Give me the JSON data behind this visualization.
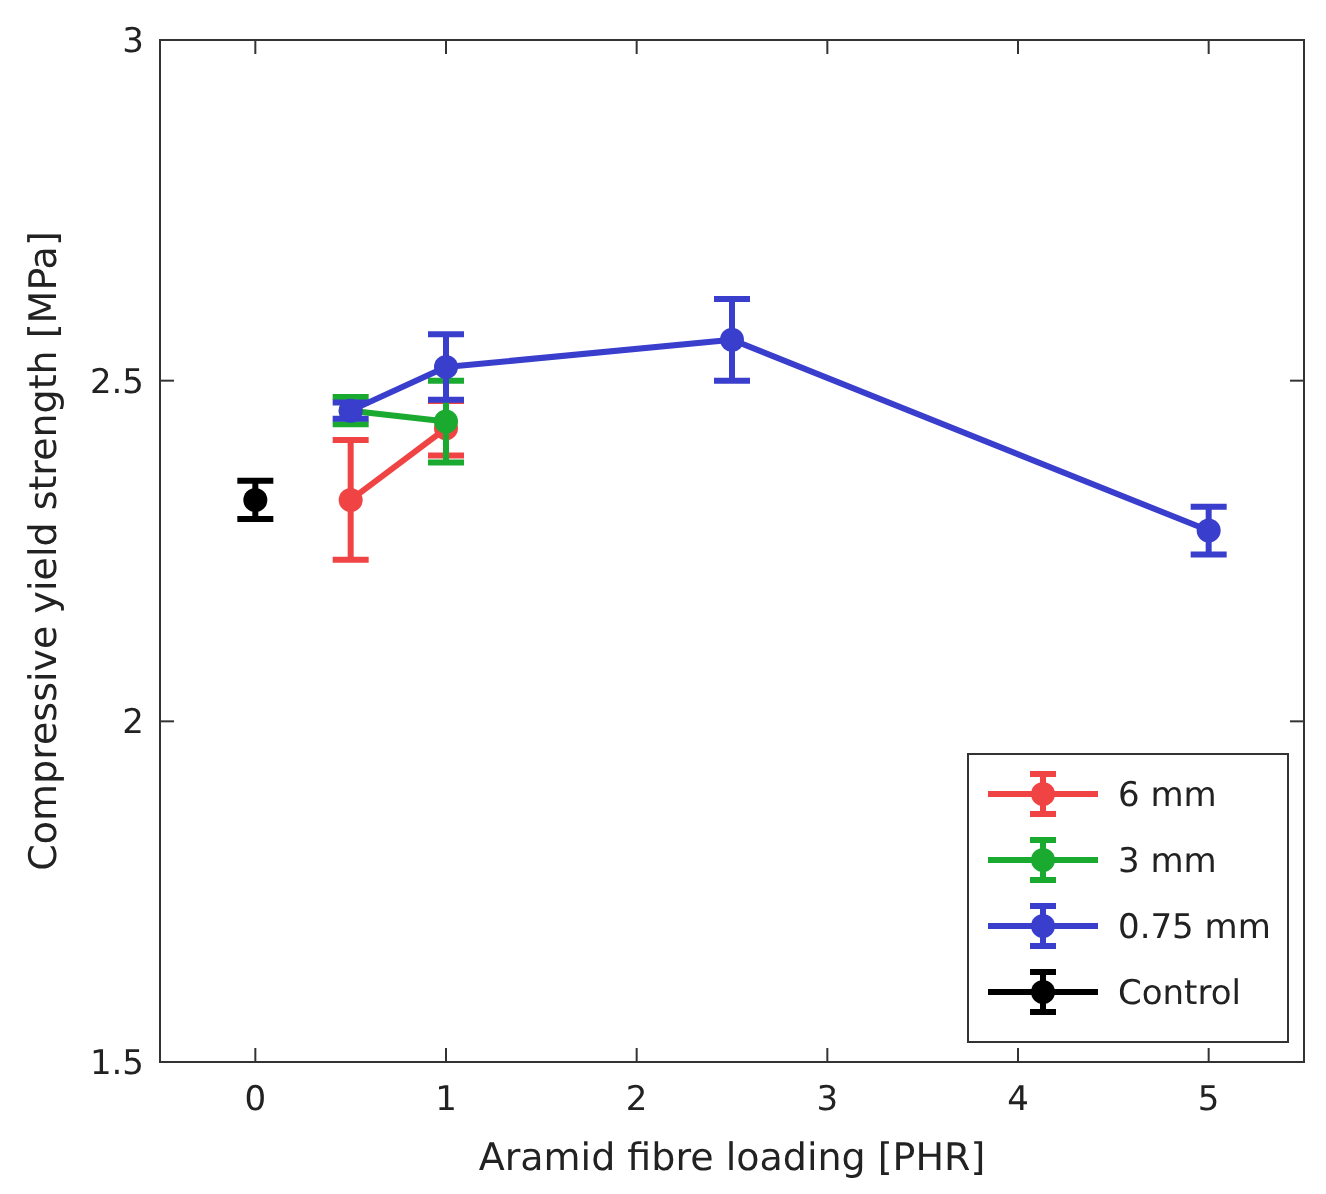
{
  "chart_data": {
    "type": "line",
    "xlabel": "Aramid fibre loading [PHR]",
    "ylabel": "Compressive yield strength [MPa]",
    "xlim": [
      -0.5,
      5.5
    ],
    "xticks": [
      0,
      1,
      2,
      3,
      4,
      5
    ],
    "ylim": [
      1.5,
      3
    ],
    "yticks": [
      1.5,
      2,
      2.5,
      3
    ],
    "marker": "circle",
    "legend": "bottom right",
    "grid": false,
    "series": [
      {
        "name": "6 mm",
        "color": "#f04444",
        "x": [
          0.5,
          1
        ],
        "values": [
          2.325,
          2.43
        ],
        "errors": [
          0.088,
          0.04
        ]
      },
      {
        "name": "3 mm",
        "color": "#1aaa30",
        "x": [
          0.5,
          1
        ],
        "values": [
          2.456,
          2.44
        ],
        "errors": [
          0.02,
          0.06
        ]
      },
      {
        "name": "0.75 mm",
        "color": "#3a3ecc",
        "x": [
          0.5,
          1,
          2.5,
          5
        ],
        "values": [
          2.456,
          2.52,
          2.56,
          2.28
        ],
        "errors": [
          0.012,
          0.048,
          0.06,
          0.035
        ]
      },
      {
        "name": "Control",
        "color": "#000000",
        "x": [
          0
        ],
        "values": [
          2.325
        ],
        "errors": [
          0.028
        ]
      }
    ]
  }
}
